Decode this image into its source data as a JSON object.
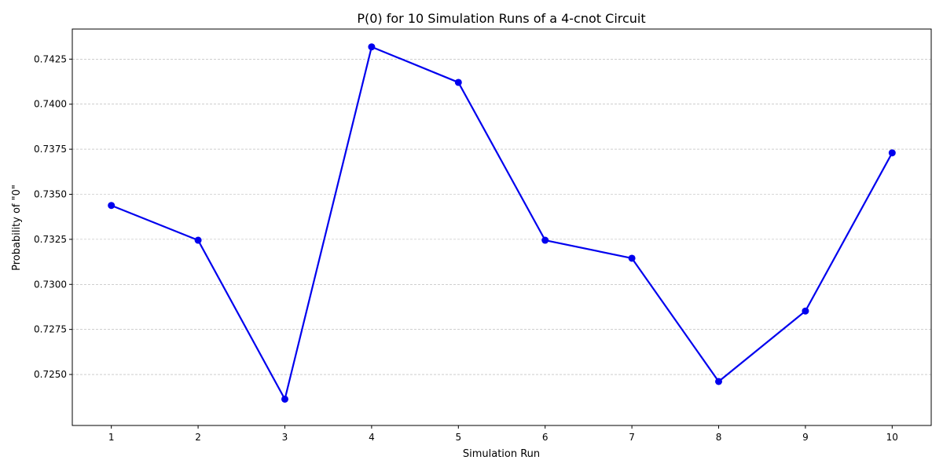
{
  "chart_data": {
    "type": "line",
    "title": "P(0) for 10 Simulation Runs of a 4-cnot Circuit",
    "xlabel": "Simulation Run",
    "ylabel": "Probability of \"0\"",
    "x": [
      1,
      2,
      3,
      4,
      5,
      6,
      7,
      8,
      9,
      10
    ],
    "series": [
      {
        "values": [
          0.73438,
          0.73245,
          0.72363,
          0.74318,
          0.74121,
          0.73245,
          0.73145,
          0.72461,
          0.72852,
          0.7373
        ],
        "color": "#0000ee",
        "marker": "circle"
      }
    ],
    "xticks": [
      "1",
      "2",
      "3",
      "4",
      "5",
      "6",
      "7",
      "8",
      "9",
      "10"
    ],
    "yticks": [
      "0.7250",
      "0.7275",
      "0.7300",
      "0.7325",
      "0.7350",
      "0.7375",
      "0.7400",
      "0.7425"
    ],
    "ytick_values": [
      0.725,
      0.7275,
      0.73,
      0.7325,
      0.735,
      0.7375,
      0.74,
      0.7425
    ],
    "xlim": [
      0.55,
      10.45
    ],
    "ylim": [
      0.72217,
      0.74417
    ],
    "grid": "horizontal-dashed",
    "legend": "none"
  }
}
